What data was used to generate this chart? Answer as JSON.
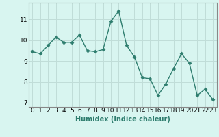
{
  "x": [
    0,
    1,
    2,
    3,
    4,
    5,
    6,
    7,
    8,
    9,
    10,
    11,
    12,
    13,
    14,
    15,
    16,
    17,
    18,
    19,
    20,
    21,
    22,
    23
  ],
  "y": [
    9.45,
    9.35,
    9.75,
    10.15,
    9.9,
    9.9,
    10.25,
    9.5,
    9.45,
    9.55,
    10.9,
    11.4,
    9.75,
    9.2,
    8.2,
    8.15,
    7.35,
    7.9,
    8.65,
    9.35,
    8.9,
    7.35,
    7.65,
    7.15
  ],
  "line_color": "#2e7d6e",
  "marker": "D",
  "marker_size": 2.5,
  "linewidth": 1.0,
  "background_color": "#d8f5f0",
  "grid_color": "#c0ddd8",
  "xlabel": "Humidex (Indice chaleur)",
  "ylim": [
    6.8,
    11.8
  ],
  "xlim": [
    -0.5,
    23.5
  ],
  "yticks": [
    7,
    8,
    9,
    10,
    11
  ],
  "xticks": [
    0,
    1,
    2,
    3,
    4,
    5,
    6,
    7,
    8,
    9,
    10,
    11,
    12,
    13,
    14,
    15,
    16,
    17,
    18,
    19,
    20,
    21,
    22,
    23
  ],
  "xlabel_fontsize": 7,
  "tick_fontsize": 6.5
}
